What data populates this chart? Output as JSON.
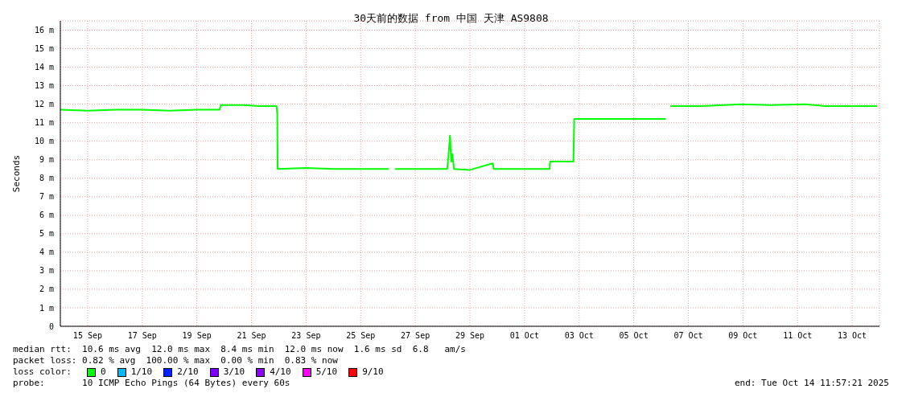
{
  "chart_data": {
    "type": "line",
    "title": "30天前的数据 from 中国 天津 AS9808",
    "ylabel": "Seconds",
    "x": [
      "2025-09-14T12:00",
      "2025-09-15T12:00",
      "2025-09-16T12:00",
      "2025-09-17T12:00",
      "2025-09-18T12:00",
      "2025-09-19T12:00",
      "2025-09-20T08:00",
      "2025-09-20T09:00",
      "2025-09-21T06:00",
      "2025-09-21T18:00",
      "2025-09-22T10:00",
      "2025-09-22T10:40",
      "2025-09-22T11:00",
      "2025-09-23T12:00",
      "2025-09-24T12:00",
      "2025-09-25T12:00",
      "2025-09-26T12:30",
      "2025-09-26T14:00",
      "2025-09-26T18:00",
      "2025-09-27T12:00",
      "2025-09-28T16:00",
      "2025-09-28T17:00",
      "2025-09-28T18:30",
      "2025-09-28T19:30",
      "2025-09-28T20:30",
      "2025-09-28T22:00",
      "2025-09-29T12:00",
      "2025-09-30T08:00",
      "2025-09-30T09:00",
      "2025-10-01T12:00",
      "2025-10-02T10:00",
      "2025-10-02T10:30",
      "2025-10-03T07:00",
      "2025-10-03T07:40",
      "2025-10-04T12:00",
      "2025-10-05T12:00",
      "2025-10-06T16:00",
      "2025-10-06T17:00",
      "2025-10-06T20:00",
      "2025-10-08T00:00",
      "2025-10-09T10:00",
      "2025-10-10T12:00",
      "2025-10-11T18:00",
      "2025-10-12T12:00",
      "2025-10-14T10:00"
    ],
    "series": [
      {
        "name": "0",
        "color": "#00ff00",
        "values": [
          11.7,
          11.65,
          11.7,
          11.7,
          11.65,
          11.7,
          11.7,
          11.95,
          11.95,
          11.9,
          11.9,
          11.5,
          8.5,
          8.55,
          8.5,
          8.5,
          8.5,
          null,
          8.5,
          8.5,
          8.5,
          9.1,
          10.3,
          8.9,
          9.3,
          8.5,
          8.45,
          8.8,
          8.5,
          8.5,
          8.5,
          8.9,
          8.9,
          11.2,
          11.2,
          11.2,
          11.2,
          null,
          11.9,
          11.9,
          12.0,
          11.95,
          12.0,
          11.9,
          11.9
        ]
      },
      {
        "name": "1/10",
        "color": "#00bbff",
        "values": [
          null,
          null,
          null,
          null,
          null,
          null,
          null,
          null,
          null,
          null,
          null,
          null,
          null,
          null,
          null,
          null,
          null,
          null,
          null,
          null,
          null,
          null,
          null,
          null,
          null,
          null,
          null,
          null,
          null,
          null,
          null,
          null,
          null,
          null,
          null,
          null,
          null,
          null,
          null,
          null,
          null,
          null,
          null,
          null,
          null
        ]
      },
      {
        "name": "2/10",
        "color": "#0022ff",
        "values": [
          null,
          null,
          null,
          null,
          null,
          null,
          null,
          null,
          null,
          null,
          null,
          null,
          null,
          null,
          null,
          null,
          null,
          null,
          null,
          null,
          null,
          null,
          null,
          null,
          null,
          null,
          null,
          null,
          null,
          null,
          null,
          null,
          null,
          null,
          null,
          null,
          null,
          null,
          null,
          null,
          null,
          null,
          null,
          null,
          null
        ]
      },
      {
        "name": "3/10",
        "color": "#8000ff",
        "values": [
          null,
          null,
          null,
          null,
          null,
          null,
          null,
          null,
          null,
          null,
          null,
          null,
          null,
          null,
          null,
          null,
          null,
          null,
          null,
          null,
          null,
          null,
          null,
          null,
          null,
          null,
          null,
          null,
          null,
          null,
          null,
          null,
          null,
          null,
          null,
          null,
          null,
          null,
          null,
          null,
          null,
          null,
          null,
          null,
          null
        ]
      },
      {
        "name": "4/10",
        "color": "#9000ff",
        "values": [
          null,
          null,
          null,
          null,
          null,
          null,
          null,
          null,
          null,
          null,
          null,
          null,
          null,
          null,
          null,
          null,
          null,
          null,
          null,
          null,
          null,
          null,
          null,
          null,
          null,
          null,
          null,
          null,
          null,
          null,
          null,
          null,
          null,
          null,
          null,
          null,
          null,
          null,
          null,
          null,
          null,
          null,
          null,
          null,
          null
        ]
      },
      {
        "name": "5/10",
        "color": "#ff00ff",
        "values": [
          null,
          null,
          null,
          null,
          null,
          null,
          null,
          null,
          null,
          null,
          null,
          null,
          null,
          null,
          null,
          null,
          null,
          null,
          null,
          null,
          null,
          null,
          null,
          null,
          null,
          null,
          null,
          null,
          null,
          null,
          null,
          null,
          null,
          null,
          null,
          null,
          null,
          null,
          null,
          null,
          null,
          null,
          null,
          null,
          null
        ]
      },
      {
        "name": "9/10",
        "color": "#ff0000",
        "values": [
          null,
          null,
          null,
          null,
          null,
          null,
          null,
          null,
          null,
          null,
          null,
          null,
          null,
          null,
          null,
          null,
          null,
          null,
          null,
          null,
          null,
          null,
          null,
          null,
          null,
          null,
          null,
          null,
          null,
          null,
          null,
          null,
          null,
          null,
          null,
          null,
          null,
          null,
          null,
          null,
          null,
          null,
          null,
          null,
          null
        ]
      }
    ],
    "legend_title": "loss color:",
    "legend": "bottom",
    "xlim": [
      "2025-09-14T12:00",
      "2025-10-14T12:00"
    ],
    "xticks": [
      {
        "value": "2025-09-15T12:00",
        "label": "15 Sep"
      },
      {
        "value": "2025-09-17T12:00",
        "label": "17 Sep"
      },
      {
        "value": "2025-09-19T12:00",
        "label": "19 Sep"
      },
      {
        "value": "2025-09-21T12:00",
        "label": "21 Sep"
      },
      {
        "value": "2025-09-23T12:00",
        "label": "23 Sep"
      },
      {
        "value": "2025-09-25T12:00",
        "label": "25 Sep"
      },
      {
        "value": "2025-09-27T12:00",
        "label": "27 Sep"
      },
      {
        "value": "2025-09-29T12:00",
        "label": "29 Sep"
      },
      {
        "value": "2025-10-01T12:00",
        "label": "01 Oct"
      },
      {
        "value": "2025-10-03T12:00",
        "label": "03 Oct"
      },
      {
        "value": "2025-10-05T12:00",
        "label": "05 Oct"
      },
      {
        "value": "2025-10-07T12:00",
        "label": "07 Oct"
      },
      {
        "value": "2025-10-09T12:00",
        "label": "09 Oct"
      },
      {
        "value": "2025-10-11T12:00",
        "label": "11 Oct"
      },
      {
        "value": "2025-10-13T12:00",
        "label": "13 Oct"
      }
    ],
    "ylim": [
      0,
      16.5
    ],
    "yticks": [
      0,
      {
        "value": 1,
        "label": "1 m"
      },
      {
        "value": 2,
        "label": "2 m"
      },
      {
        "value": 3,
        "label": "3 m"
      },
      {
        "value": 4,
        "label": "4 m"
      },
      {
        "value": 5,
        "label": "5 m"
      },
      {
        "value": 6,
        "label": "6 m"
      },
      {
        "value": 7,
        "label": "7 m"
      },
      {
        "value": 8,
        "label": "8 m"
      },
      {
        "value": 9,
        "label": "9 m"
      },
      {
        "value": 10,
        "label": "10 m"
      },
      {
        "value": 11,
        "label": "11 m"
      },
      {
        "value": 12,
        "label": "12 m"
      },
      {
        "value": 13,
        "label": "13 m"
      },
      {
        "value": 14,
        "label": "14 m"
      },
      {
        "value": 15,
        "label": "15 m"
      },
      {
        "value": 16,
        "label": "16 m"
      }
    ],
    "grid": true,
    "marker": "none",
    "line_style": "solid",
    "annotations": [
      "median rtt:  10.6 ms avg  12.0 ms max  8.4 ms min  12.0 ms now  1.6 ms sd  6.8   am/s",
      "packet loss: 0.82 % avg  100.00 % max  0.00 % min  0.83 % now",
      "probe:       10 ICMP Echo Pings (64 Bytes) every 60s",
      "end: Tue Oct 14 11:57:21 2025"
    ]
  }
}
